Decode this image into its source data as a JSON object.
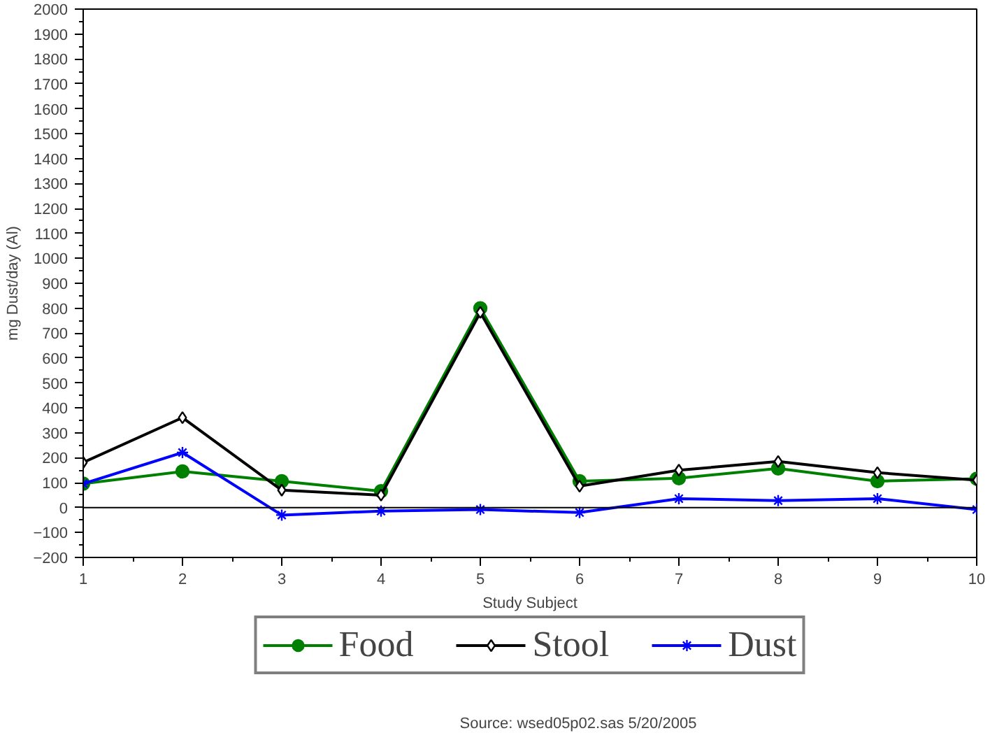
{
  "chart_data": {
    "type": "line",
    "xlabel": "Study Subject",
    "ylabel": "mg Dust/day (Al)",
    "x": [
      1,
      2,
      3,
      4,
      5,
      6,
      7,
      8,
      9,
      10
    ],
    "series": [
      {
        "name": "Food",
        "color": "#008000",
        "marker": "circle",
        "values": [
          96,
          145,
          106,
          66,
          800,
          106,
          118,
          157,
          106,
          116
        ]
      },
      {
        "name": "Stool",
        "color": "#000000",
        "marker": "diamond",
        "values": [
          181,
          361,
          70,
          50,
          783,
          86,
          150,
          185,
          140,
          110
        ]
      },
      {
        "name": "Dust",
        "color": "#0000ff",
        "marker": "cross",
        "values": [
          96,
          221,
          -30,
          -14,
          -8,
          -20,
          36,
          28,
          36,
          -8
        ]
      }
    ],
    "xlim": [
      1,
      10
    ],
    "xticks": [
      1,
      2,
      3,
      4,
      5,
      6,
      7,
      8,
      9,
      10
    ],
    "ylim": [
      -200,
      2000
    ],
    "yticks": [
      -200,
      -100,
      0,
      100,
      200,
      300,
      400,
      500,
      600,
      700,
      800,
      900,
      1000,
      1100,
      1200,
      1300,
      1400,
      1500,
      1600,
      1700,
      1800,
      1900,
      2000
    ],
    "ref_lines": [
      {
        "axis": "y",
        "value": 0,
        "color": "#000000"
      }
    ],
    "grid": false,
    "legend": "bottom",
    "line_style": "solid",
    "annotations": [
      "Source: wsed05p02.sas 5/20/2005"
    ]
  }
}
